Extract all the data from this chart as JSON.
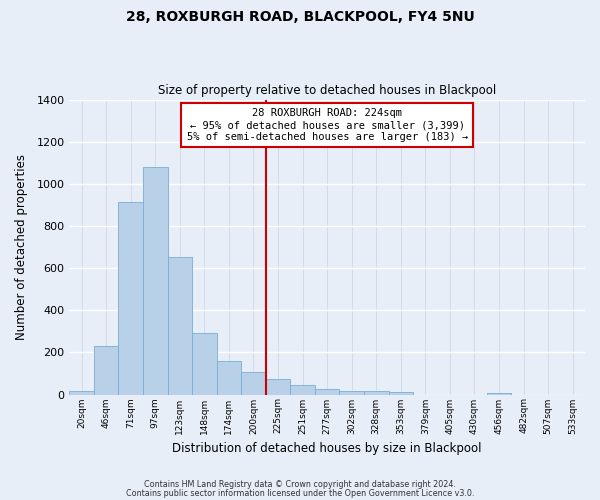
{
  "title": "28, ROXBURGH ROAD, BLACKPOOL, FY4 5NU",
  "subtitle": "Size of property relative to detached houses in Blackpool",
  "xlabel": "Distribution of detached houses by size in Blackpool",
  "ylabel": "Number of detached properties",
  "bin_labels": [
    "20sqm",
    "46sqm",
    "71sqm",
    "97sqm",
    "123sqm",
    "148sqm",
    "174sqm",
    "200sqm",
    "225sqm",
    "251sqm",
    "277sqm",
    "302sqm",
    "328sqm",
    "353sqm",
    "379sqm",
    "405sqm",
    "430sqm",
    "456sqm",
    "482sqm",
    "507sqm",
    "533sqm"
  ],
  "bar_values": [
    15,
    228,
    915,
    1080,
    655,
    290,
    158,
    108,
    72,
    43,
    25,
    18,
    17,
    10,
    0,
    0,
    0,
    5,
    0,
    0,
    0
  ],
  "bar_color": "#b8d0e8",
  "bar_edge_color": "#7aadd4",
  "vline_color": "#cc0000",
  "annotation_title": "28 ROXBURGH ROAD: 224sqm",
  "annotation_line1": "← 95% of detached houses are smaller (3,399)",
  "annotation_line2": "5% of semi-detached houses are larger (183) →",
  "annotation_box_facecolor": "#ffffff",
  "annotation_box_edgecolor": "#cc0000",
  "ylim": [
    0,
    1400
  ],
  "yticks": [
    0,
    200,
    400,
    600,
    800,
    1000,
    1200,
    1400
  ],
  "footer1": "Contains HM Land Registry data © Crown copyright and database right 2024.",
  "footer2": "Contains public sector information licensed under the Open Government Licence v3.0.",
  "background_color": "#e8eef8",
  "grid_color": "#d0d8e8"
}
